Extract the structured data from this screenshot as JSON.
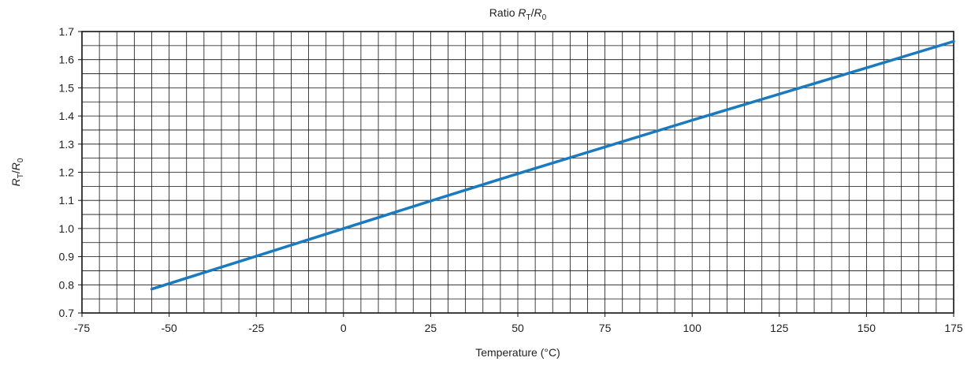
{
  "chart_data": {
    "type": "line",
    "title": "Ratio R_T/R_0",
    "title_parts": {
      "prefix": "Ratio ",
      "var1": "R",
      "sub1": "T",
      "slash": "/",
      "var2": "R",
      "sub2": "0"
    },
    "xlabel": "Temperature (°C)",
    "ylabel": "R_T/R_0",
    "ylabel_parts": {
      "var1": "R",
      "sub1": "T",
      "slash": "/",
      "var2": "R",
      "sub2": "0"
    },
    "xlim": [
      -75,
      175
    ],
    "ylim": [
      0.7,
      1.7
    ],
    "x_ticks": [
      -75,
      -50,
      -25,
      0,
      25,
      50,
      75,
      100,
      125,
      150,
      175
    ],
    "x_tick_labels": [
      "-75",
      "-50",
      "-25",
      "0",
      "25",
      "50",
      "75",
      "100",
      "125",
      "150",
      "175"
    ],
    "y_ticks": [
      0.7,
      0.8,
      0.9,
      1.0,
      1.1,
      1.2,
      1.3,
      1.4,
      1.5,
      1.6,
      1.7
    ],
    "y_tick_labels": [
      "0.7",
      "0.8",
      "0.9",
      "1.0",
      "1.1",
      "1.2",
      "1.3",
      "1.4",
      "1.5",
      "1.6",
      "1.7"
    ],
    "grid": true,
    "minor_x_step": 5,
    "minor_y_step": 0.05,
    "series": [
      {
        "color": "#1a7abf",
        "x": [
          -55,
          -25,
          0,
          25,
          50,
          75,
          100,
          125,
          150,
          175
        ],
        "y": [
          0.785,
          0.902,
          1.0,
          1.098,
          1.195,
          1.29,
          1.385,
          1.478,
          1.571,
          1.665
        ]
      }
    ]
  }
}
